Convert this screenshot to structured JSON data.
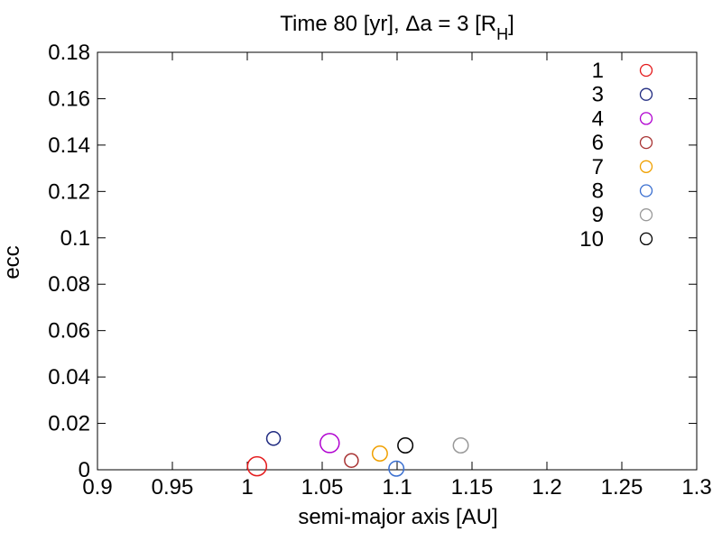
{
  "chart_data": {
    "type": "scatter",
    "title": "Time 80 [yr],     Δa = 3 [R",
    "title_subscript": "H",
    "title_suffix": "]",
    "xlabel": "semi-major axis [AU]",
    "ylabel": "ecc",
    "xlim": [
      0.9,
      1.3
    ],
    "ylim": [
      0,
      0.18
    ],
    "xticks": [
      0.9,
      0.95,
      1,
      1.05,
      1.1,
      1.15,
      1.2,
      1.25,
      1.3
    ],
    "xtick_labels": [
      "0.9",
      "0.95",
      "1",
      "1.05",
      "1.1",
      "1.15",
      "1.2",
      "1.25",
      "1.3"
    ],
    "yticks": [
      0,
      0.02,
      0.04,
      0.06,
      0.08,
      0.1,
      0.12,
      0.14,
      0.16,
      0.18
    ],
    "ytick_labels": [
      "0",
      "0.02",
      "0.04",
      "0.06",
      "0.08",
      "0.1",
      "0.12",
      "0.14",
      "0.16",
      "0.18"
    ],
    "grid": false,
    "legend_position": "top-right",
    "marker": "open-circle",
    "series": [
      {
        "name": "1",
        "color": "#e41a1c",
        "points": [
          {
            "x": 1.0065,
            "y": 0.0015,
            "size": 1.4
          }
        ]
      },
      {
        "name": "3",
        "color": "#1f2a80",
        "points": [
          {
            "x": 1.0175,
            "y": 0.0135,
            "size": 1.0
          }
        ]
      },
      {
        "name": "4",
        "color": "#b000d0",
        "points": [
          {
            "x": 1.055,
            "y": 0.0115,
            "size": 1.4
          }
        ]
      },
      {
        "name": "6",
        "color": "#a83232",
        "points": [
          {
            "x": 1.0695,
            "y": 0.004,
            "size": 1.0
          }
        ]
      },
      {
        "name": "7",
        "color": "#f0a000",
        "points": [
          {
            "x": 1.0885,
            "y": 0.007,
            "size": 1.1
          }
        ]
      },
      {
        "name": "8",
        "color": "#3a6fd0",
        "points": [
          {
            "x": 1.0995,
            "y": 0.0005,
            "size": 1.1
          }
        ]
      },
      {
        "name": "9",
        "color": "#999999",
        "points": [
          {
            "x": 1.1425,
            "y": 0.0105,
            "size": 1.1
          }
        ]
      },
      {
        "name": "10",
        "color": "#000000",
        "points": [
          {
            "x": 1.1055,
            "y": 0.0105,
            "size": 1.1
          }
        ]
      }
    ]
  }
}
